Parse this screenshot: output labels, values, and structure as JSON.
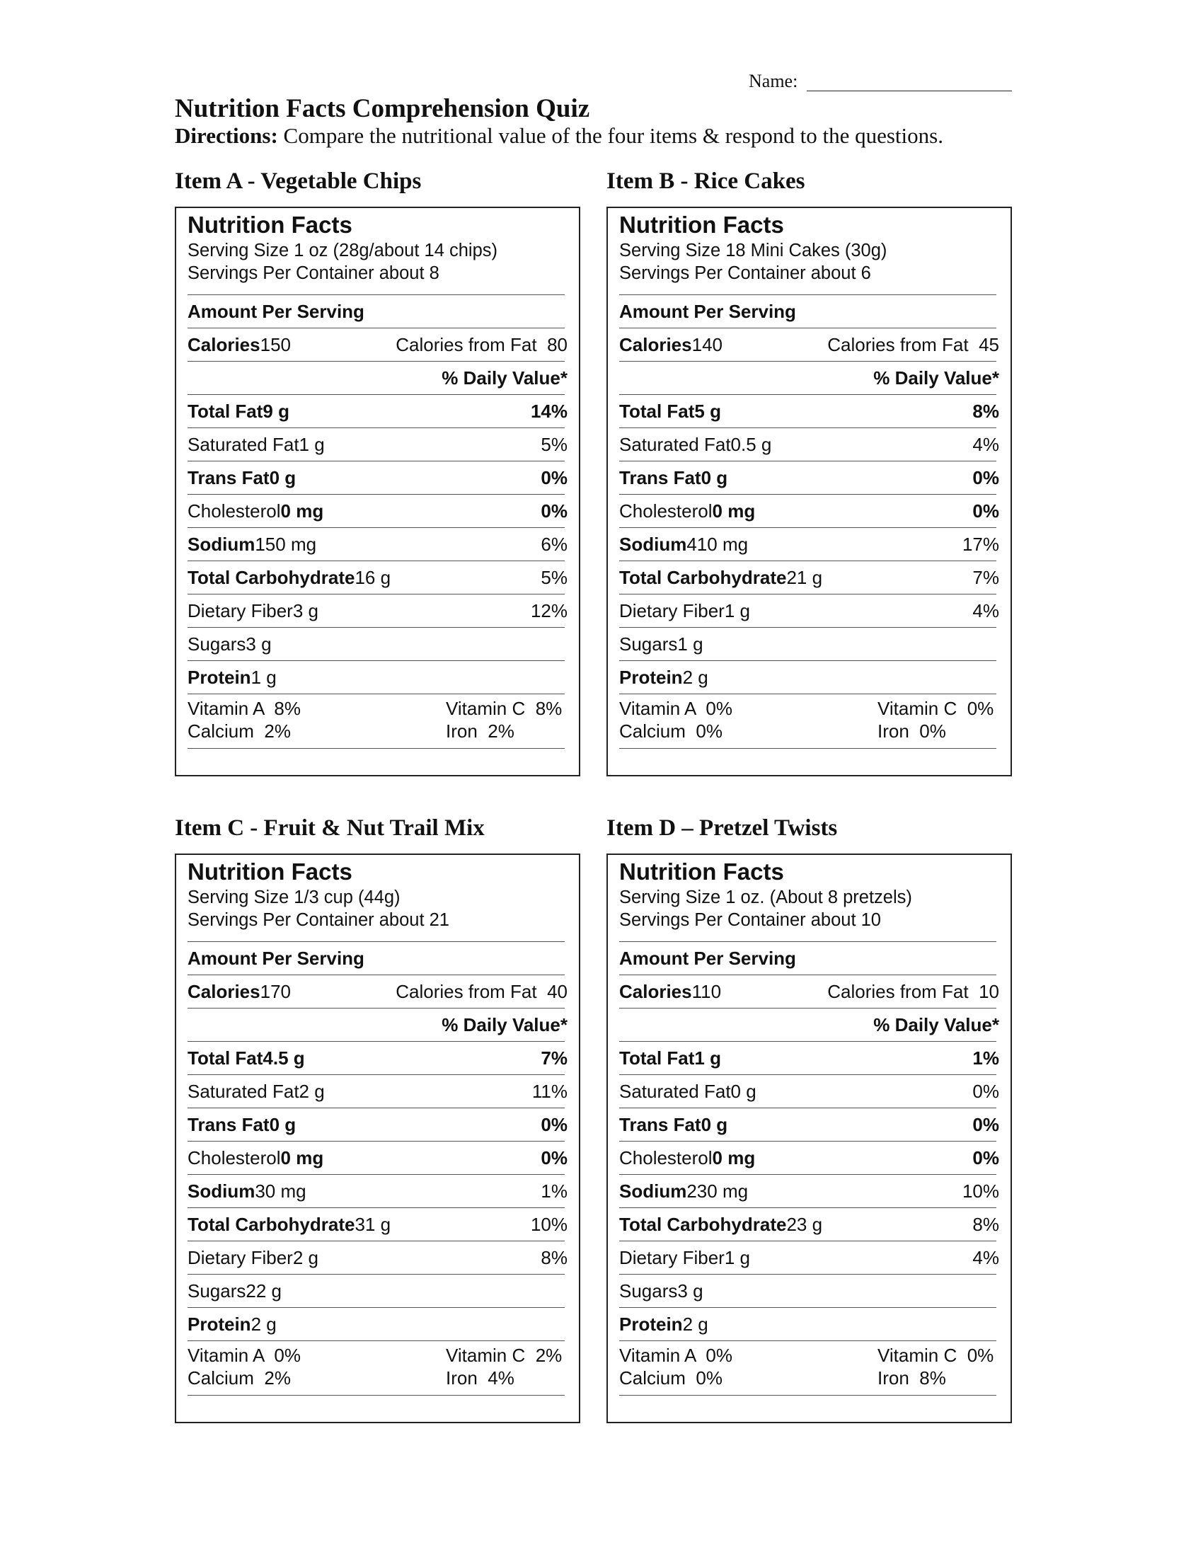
{
  "header": {
    "name_label": "Name:",
    "title": "Nutrition Facts Comprehension Quiz",
    "directions_label": "Directions:",
    "directions_text": "Compare the nutritional value of the four items & respond to the questions."
  },
  "items": [
    {
      "heading": "Item A - Vegetable Chips",
      "label": {
        "title": "Nutrition Facts",
        "serving_size": "Serving Size 1 oz (28g/about 14 chips)",
        "servings_per_container": "Servings Per Container about 8",
        "amount_per_serving": "Amount Per Serving",
        "calories_label": "Calories",
        "calories": 150,
        "calories_from_fat_label": "Calories from Fat",
        "calories_from_fat": 80,
        "daily_value_header": "% Daily Value*",
        "rows": [
          {
            "nutrient": "Total Fat",
            "amount": "9 g",
            "dv": "14%"
          },
          {
            "nutrient": "Saturated Fat",
            "amount": "1 g",
            "dv": "5%"
          },
          {
            "nutrient": "Trans Fat",
            "amount": "0 g",
            "dv": "0%"
          },
          {
            "nutrient": "Cholesterol",
            "amount": "0 mg",
            "dv": "0%"
          },
          {
            "nutrient": "Sodium",
            "amount": "150 mg",
            "dv": "6%"
          },
          {
            "nutrient": "Total Carbohydrate",
            "amount": "16 g",
            "dv": "5%"
          },
          {
            "nutrient": "Dietary Fiber",
            "amount": "3 g",
            "dv": "12%"
          },
          {
            "nutrient": "Sugars",
            "amount": "3 g"
          },
          {
            "nutrient": "Protein",
            "amount": "1 g"
          }
        ],
        "vitamins": [
          {
            "name": "Vitamin A",
            "value": "8%"
          },
          {
            "name": "Vitamin C",
            "value": "8%"
          },
          {
            "name": "Calcium",
            "value": "2%"
          },
          {
            "name": "Iron",
            "value": "2%"
          }
        ]
      }
    },
    {
      "heading": "Item B - Rice Cakes",
      "label": {
        "title": "Nutrition Facts",
        "serving_size": "Serving Size 18 Mini Cakes (30g)",
        "servings_per_container": "Servings Per Container about 6",
        "amount_per_serving": "Amount Per Serving",
        "calories_label": "Calories",
        "calories": 140,
        "calories_from_fat_label": "Calories from Fat",
        "calories_from_fat": 45,
        "daily_value_header": "% Daily Value*",
        "rows": [
          {
            "nutrient": "Total Fat",
            "amount": "5 g",
            "dv": "8%"
          },
          {
            "nutrient": "Saturated Fat",
            "amount": "0.5 g",
            "dv": "4%"
          },
          {
            "nutrient": "Trans Fat",
            "amount": "0 g",
            "dv": "0%"
          },
          {
            "nutrient": "Cholesterol",
            "amount": "0 mg",
            "dv": "0%"
          },
          {
            "nutrient": "Sodium",
            "amount": "410 mg",
            "dv": "17%"
          },
          {
            "nutrient": "Total Carbohydrate",
            "amount": "21 g",
            "dv": "7%"
          },
          {
            "nutrient": "Dietary Fiber",
            "amount": "1 g",
            "dv": "4%"
          },
          {
            "nutrient": "Sugars",
            "amount": "1 g"
          },
          {
            "nutrient": "Protein",
            "amount": "2 g"
          }
        ],
        "vitamins": [
          {
            "name": "Vitamin A",
            "value": "0%"
          },
          {
            "name": "Vitamin C",
            "value": "0%"
          },
          {
            "name": "Calcium",
            "value": "0%"
          },
          {
            "name": "Iron",
            "value": "0%"
          }
        ]
      }
    },
    {
      "heading": "Item C - Fruit & Nut Trail Mix",
      "label": {
        "title": "Nutrition Facts",
        "serving_size": "Serving Size 1/3 cup (44g)",
        "servings_per_container": "Servings Per Container about 21",
        "amount_per_serving": "Amount Per Serving",
        "calories_label": "Calories",
        "calories": 170,
        "calories_from_fat_label": "Calories from Fat",
        "calories_from_fat": 40,
        "daily_value_header": "% Daily Value*",
        "rows": [
          {
            "nutrient": "Total Fat",
            "amount": "4.5 g",
            "dv": "7%"
          },
          {
            "nutrient": "Saturated Fat",
            "amount": "2 g",
            "dv": "11%"
          },
          {
            "nutrient": "Trans Fat",
            "amount": "0 g",
            "dv": "0%"
          },
          {
            "nutrient": "Cholesterol",
            "amount": "0 mg",
            "dv": "0%"
          },
          {
            "nutrient": "Sodium",
            "amount": "30 mg",
            "dv": "1%"
          },
          {
            "nutrient": "Total Carbohydrate",
            "amount": "31 g",
            "dv": "10%"
          },
          {
            "nutrient": "Dietary Fiber",
            "amount": "2 g",
            "dv": "8%"
          },
          {
            "nutrient": "Sugars",
            "amount": "22 g"
          },
          {
            "nutrient": "Protein",
            "amount": "2 g"
          }
        ],
        "vitamins": [
          {
            "name": "Vitamin A",
            "value": "0%"
          },
          {
            "name": "Vitamin C",
            "value": "2%"
          },
          {
            "name": "Calcium",
            "value": "2%"
          },
          {
            "name": "Iron",
            "value": "4%"
          }
        ]
      }
    },
    {
      "heading": "Item D – Pretzel Twists",
      "label": {
        "title": "Nutrition Facts",
        "serving_size": "Serving Size 1 oz. (About 8 pretzels)",
        "servings_per_container": "Servings Per Container about 10",
        "amount_per_serving": "Amount Per Serving",
        "calories_label": "Calories",
        "calories": 110,
        "calories_from_fat_label": "Calories from Fat",
        "calories_from_fat": 10,
        "daily_value_header": "% Daily Value*",
        "rows": [
          {
            "nutrient": "Total Fat",
            "amount": "1 g",
            "dv": "1%"
          },
          {
            "nutrient": "Saturated Fat",
            "amount": "0 g",
            "dv": "0%"
          },
          {
            "nutrient": "Trans Fat",
            "amount": "0 g",
            "dv": "0%"
          },
          {
            "nutrient": "Cholesterol",
            "amount": "0 mg",
            "dv": "0%"
          },
          {
            "nutrient": "Sodium",
            "amount": "230 mg",
            "dv": "10%"
          },
          {
            "nutrient": "Total Carbohydrate",
            "amount": "23 g",
            "dv": "8%"
          },
          {
            "nutrient": "Dietary Fiber",
            "amount": "1 g",
            "dv": "4%"
          },
          {
            "nutrient": "Sugars",
            "amount": "3 g"
          },
          {
            "nutrient": "Protein",
            "amount": "2 g"
          }
        ],
        "vitamins": [
          {
            "name": "Vitamin A",
            "value": "0%"
          },
          {
            "name": "Vitamin C",
            "value": "0%"
          },
          {
            "name": "Calcium",
            "value": "0%"
          },
          {
            "name": "Iron",
            "value": "8%"
          }
        ]
      }
    }
  ]
}
